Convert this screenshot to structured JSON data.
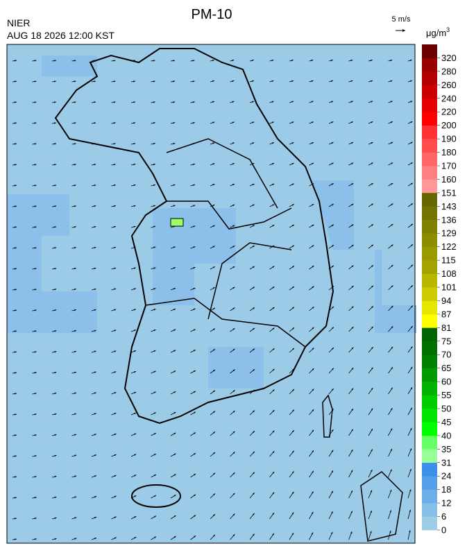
{
  "header": {
    "title": "PM-10",
    "agency": "NIER",
    "datetime": "AUG 18 2026 12:00 KST",
    "wind_scale": "5 m/s"
  },
  "colorbar": {
    "unit": "μg/m",
    "unit_sup": "3",
    "ticks": [
      0,
      6,
      12,
      18,
      24,
      31,
      35,
      40,
      45,
      50,
      55,
      60,
      65,
      70,
      75,
      81,
      87,
      94,
      101,
      108,
      115,
      122,
      129,
      136,
      143,
      151,
      160,
      170,
      180,
      190,
      200,
      220,
      240,
      260,
      280,
      320
    ],
    "colors": [
      "#a0cde6",
      "#87bfe8",
      "#6eaee8",
      "#559fea",
      "#3c90ec",
      "#99ff99",
      "#66ff66",
      "#00ff00",
      "#00e600",
      "#00cc00",
      "#00b300",
      "#009900",
      "#008000",
      "#007000",
      "#006400",
      "#ffff00",
      "#e6e600",
      "#cccc00",
      "#b8b800",
      "#a3a300",
      "#999900",
      "#8c8c00",
      "#808000",
      "#737300",
      "#666600",
      "#ff9999",
      "#ff8080",
      "#ff6666",
      "#ff4d4d",
      "#ff3333",
      "#ff0000",
      "#e60000",
      "#cc0000",
      "#b30000",
      "#990000",
      "#6b0000"
    ]
  }
}
